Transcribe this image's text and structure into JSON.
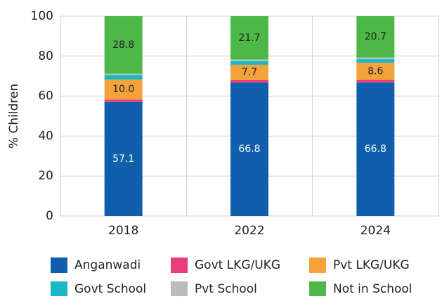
{
  "chart_data": {
    "type": "stacked_bar",
    "categories": [
      "2018",
      "2022",
      "2024"
    ],
    "y_label": "% Children",
    "ylim": [
      0,
      100
    ],
    "yticks": [
      0,
      20,
      40,
      60,
      80,
      100
    ],
    "grid": true,
    "series": [
      {
        "name": "Anganwadi",
        "color": "#0f5fac",
        "values": [
          57.1,
          66.8,
          66.8
        ],
        "value_labels": [
          "57.1",
          "66.8",
          "66.8"
        ]
      },
      {
        "name": "Govt LKG/UKG",
        "color": "#e83e7c",
        "values": [
          1.2,
          1.2,
          1.3
        ]
      },
      {
        "name": "Pvt LKG/UKG",
        "color": "#f4a23a",
        "values": [
          10.0,
          7.7,
          8.6
        ],
        "value_labels": [
          "10.0",
          "7.7",
          "8.6"
        ]
      },
      {
        "name": "Govt School",
        "color": "#1ab8c4",
        "values": [
          2.2,
          1.8,
          1.8
        ]
      },
      {
        "name": "Pvt School",
        "color": "#bdbbbb",
        "values": [
          0.7,
          0.8,
          0.8
        ]
      },
      {
        "name": "Not in School",
        "color": "#4db848",
        "values": [
          28.8,
          21.7,
          20.7
        ],
        "value_labels": [
          "28.8",
          "21.7",
          "20.7"
        ]
      }
    ]
  }
}
